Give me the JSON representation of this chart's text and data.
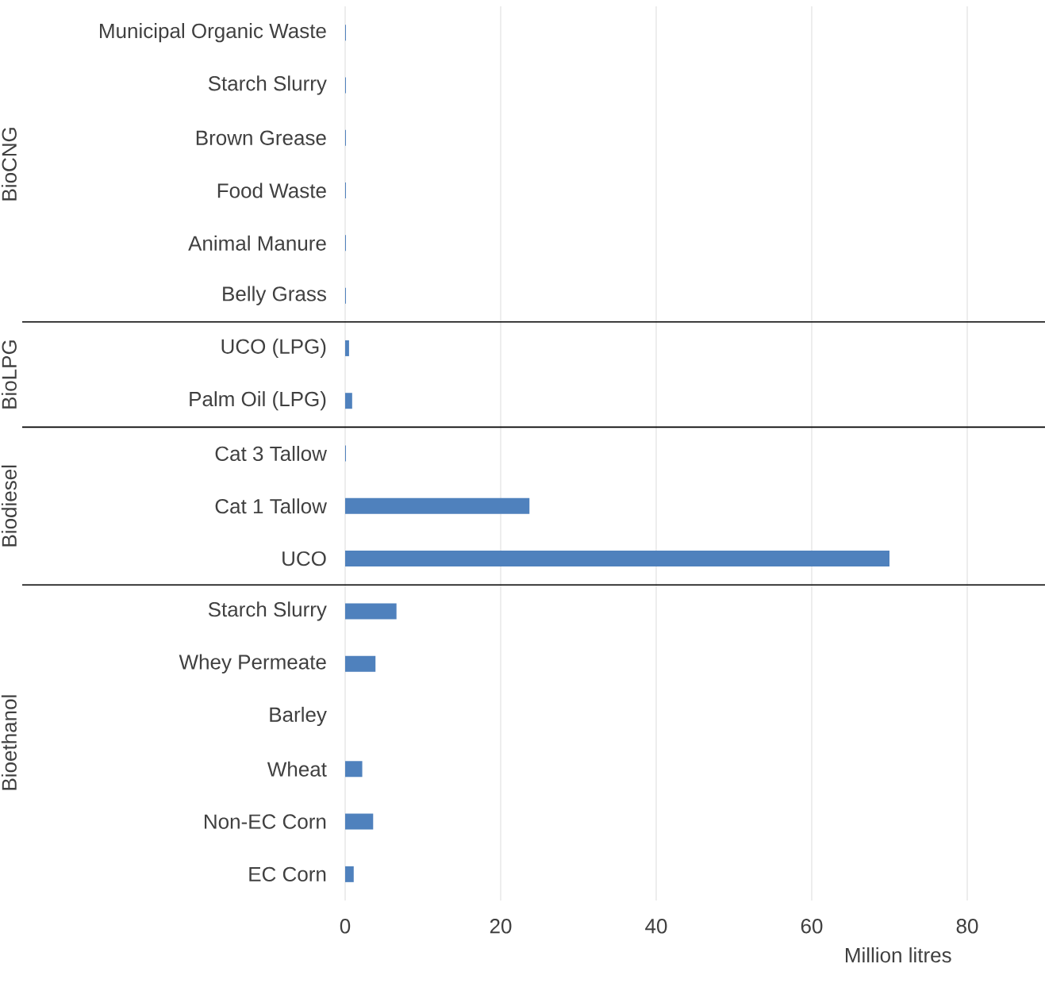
{
  "chart_data": {
    "type": "bar",
    "orientation": "horizontal",
    "xlabel": "Million litres",
    "categories": [
      "Municipal Organic Waste",
      "Starch Slurry",
      "Brown Grease",
      "Food Waste",
      "Animal Manure",
      "Belly Grass",
      "UCO (LPG)",
      "Palm Oil (LPG)",
      "Cat 3 Tallow",
      "Cat 1 Tallow",
      "UCO",
      "Starch Slurry",
      "Whey Permeate",
      "Barley",
      "Wheat",
      "Non-EC Corn",
      "EC Corn"
    ],
    "values": [
      0.1,
      0.1,
      0.1,
      0.1,
      0.1,
      0.1,
      0.5,
      0.9,
      0.1,
      23.7,
      70,
      6.6,
      3.9,
      0,
      2.2,
      3.6,
      1.1
    ],
    "color": "#4f81bd",
    "xlim": [
      0,
      90
    ],
    "xticks": [
      0,
      20,
      40,
      60,
      80
    ],
    "grid": "x",
    "annotations": [
      "BioCNG",
      "BioLPG",
      "Biodiesel",
      "Bioethanol"
    ]
  }
}
